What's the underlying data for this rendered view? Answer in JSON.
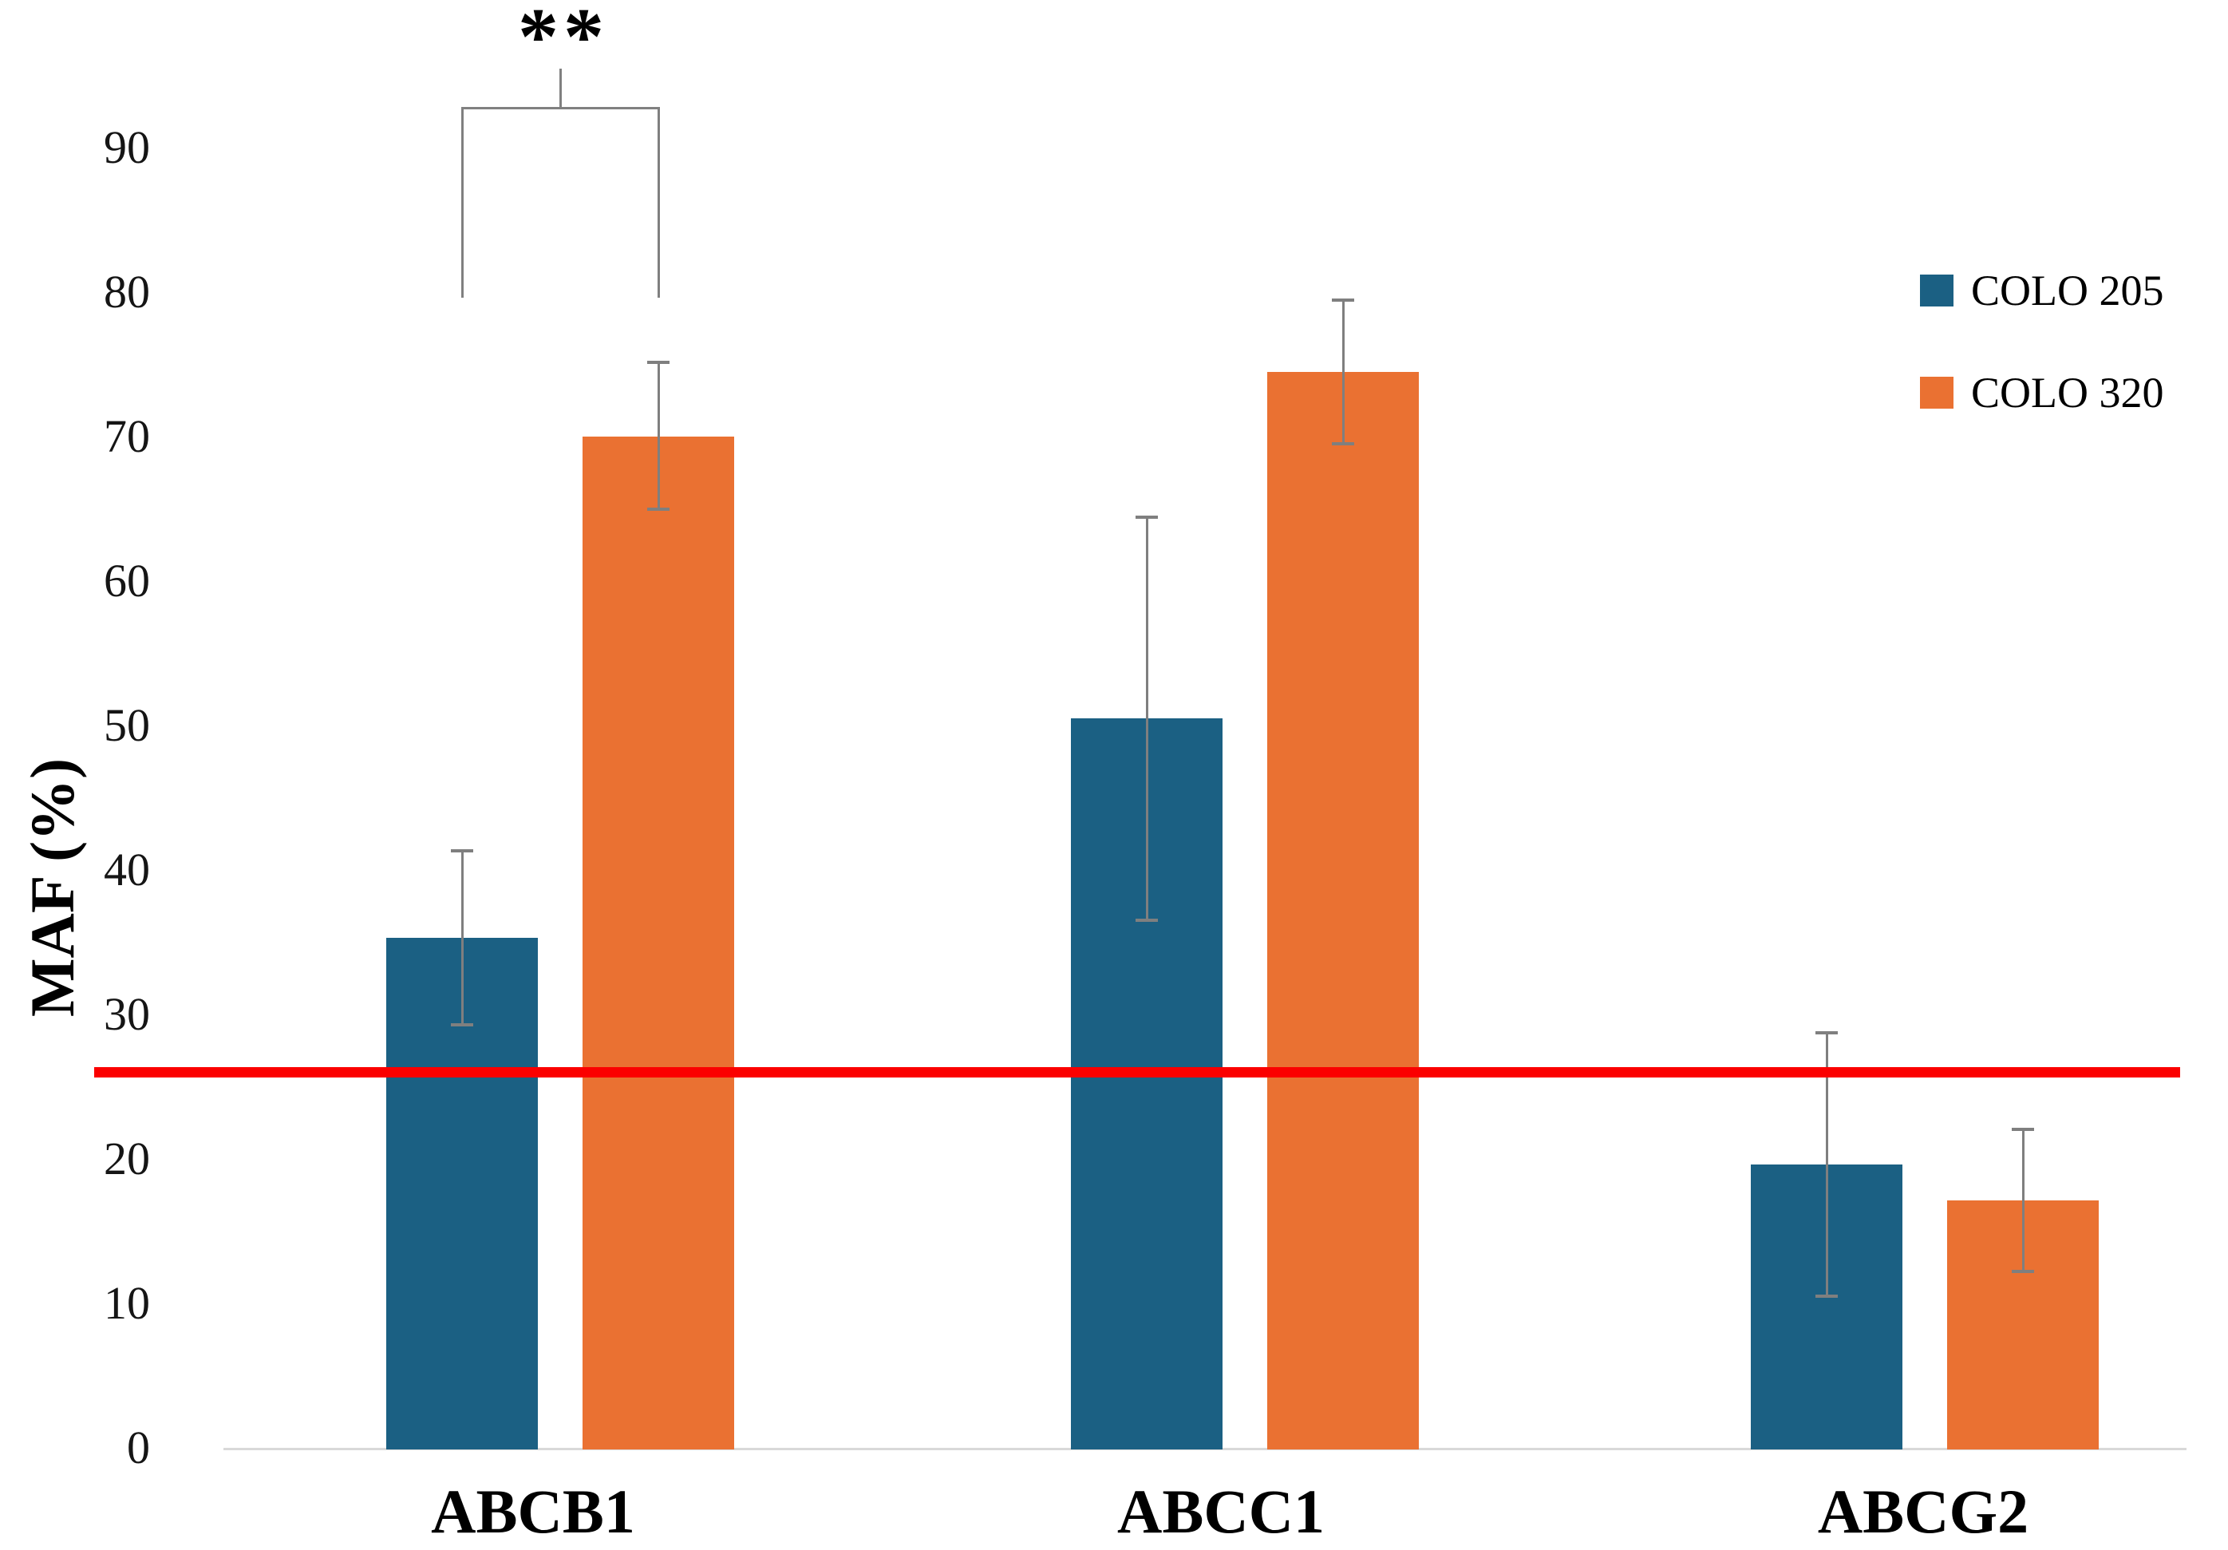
{
  "figure": {
    "background": "#FFFFFF"
  },
  "chart_data": {
    "type": "bar",
    "title": "",
    "ylabel": "MAF (%)",
    "xlabel": "",
    "categories": [
      "ABCB1",
      "ABCC1",
      "ABCG2"
    ],
    "series": [
      {
        "name": "COLO 205",
        "color": "#1B6083",
        "values": [
          35.3,
          50.5,
          19.6
        ],
        "error_low": [
          29.3,
          36.5,
          10.5
        ],
        "error_high": [
          41.4,
          64.5,
          28.8
        ]
      },
      {
        "name": "COLO 320",
        "color": "#EA7132",
        "values": [
          70.0,
          74.5,
          17.1
        ],
        "error_low": [
          65.0,
          69.5,
          12.2
        ],
        "error_high": [
          75.2,
          79.5,
          22.1
        ]
      }
    ],
    "y_ticks": [
      0,
      10,
      20,
      30,
      40,
      50,
      60,
      70,
      80,
      90
    ],
    "ylim": [
      0,
      97
    ],
    "grid": false,
    "legend_position": "top-right",
    "legend_entries": [
      "COLO 205",
      "COLO 320"
    ],
    "reference_line": {
      "value": 26,
      "color": "#FB0000"
    },
    "significance_marker": {
      "label": "**",
      "category": "ABCB1",
      "between": [
        "COLO 205",
        "COLO 320"
      ],
      "bracket_top_value": 92.8,
      "arm_bottom_value": 79.6
    },
    "error_bar_color": "#7F7F7F",
    "axis_line_color": "#D9D9D9"
  }
}
